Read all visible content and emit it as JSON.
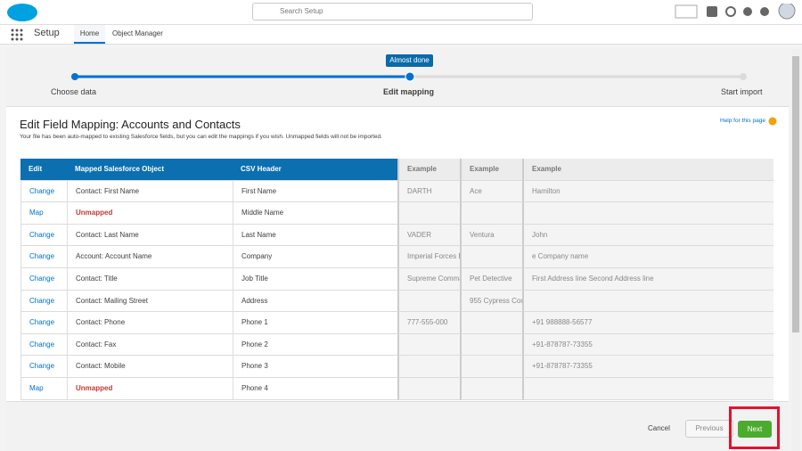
{
  "header": {
    "search_placeholder": "Search Setup"
  },
  "nav": {
    "app": "Setup",
    "tabs": [
      "Home",
      "Object Manager"
    ]
  },
  "progress": {
    "badge": "Almost done",
    "steps": [
      "Choose data",
      "Edit mapping",
      "Start import"
    ]
  },
  "page": {
    "title": "Edit Field Mapping: Accounts and Contacts",
    "description": "Your file has been auto-mapped to existing Salesforce fields, but you can edit the mappings if you wish. Unmapped fields will not be imported.",
    "help": "Help for this page"
  },
  "table": {
    "headers": [
      "Edit",
      "Mapped Salesforce Object",
      "CSV Header",
      "Example",
      "Example",
      "Example"
    ],
    "rows": [
      [
        "Change",
        "Contact: First Name",
        "First Name",
        "DARTH",
        "Ace",
        "Hamilton"
      ],
      [
        "Map",
        "Unmapped",
        "Middle Name",
        null,
        null,
        null
      ],
      [
        "Change",
        "Contact: Last Name",
        "Last Name",
        "VADER",
        "Ventura",
        "John"
      ],
      [
        "Change",
        "Account: Account Name",
        "Company",
        "Imperial Forces E",
        null,
        "e Company name"
      ],
      [
        "Change",
        "Contact: Title",
        "Job Title",
        "Supreme Comma",
        "Pet Detective",
        "First Address line Second Address line"
      ],
      [
        "Change",
        "Contact: Mailing Street",
        "Address",
        null,
        "955 Cypress Cou",
        null
      ],
      [
        "Change",
        "Contact: Phone",
        "Phone 1",
        "777-555-000",
        null,
        "+91 988888-56577"
      ],
      [
        "Change",
        "Contact: Fax",
        "Phone 2",
        null,
        null,
        "+91-878787-73355"
      ],
      [
        "Change",
        "Contact: Mobile",
        "Phone 3",
        null,
        null,
        "+91-878787-73355"
      ],
      [
        "Map",
        "Unmapped",
        "Phone 4",
        null,
        null,
        null
      ]
    ]
  },
  "footer": {
    "buttons": [
      "Cancel",
      "Previous",
      "Next"
    ]
  }
}
